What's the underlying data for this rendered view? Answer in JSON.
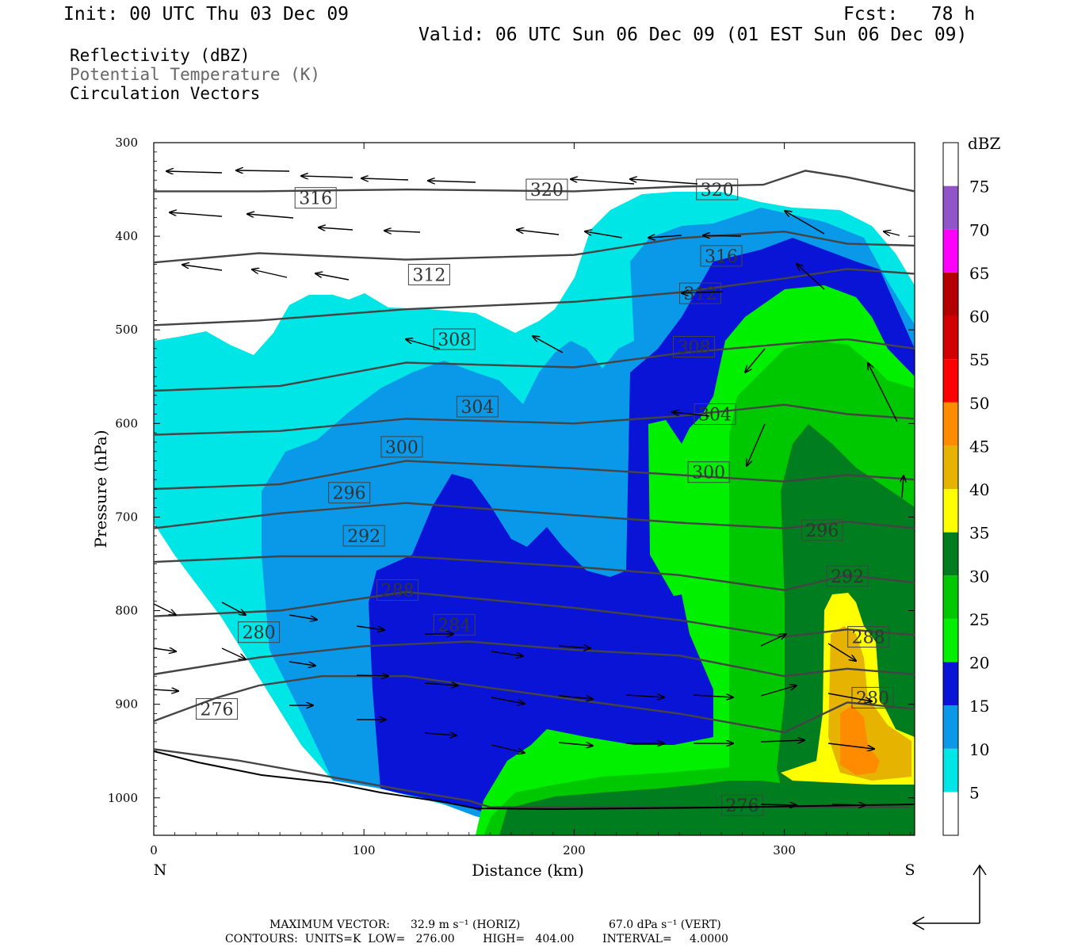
{
  "header": {
    "init": "Init: 00 UTC Thu 03 Dec 09",
    "fcst": "Fcst:   78 h",
    "valid": "Valid: 06 UTC Sun 06 Dec 09 (01 EST Sun 06 Dec 09)"
  },
  "legend_lines": {
    "reflectivity": "Reflectivity (dBZ)",
    "theta": "Potential Temperature (K)",
    "vectors": "Circulation Vectors"
  },
  "footer": {
    "max_vector_label": "MAXIMUM VECTOR:",
    "max_vector_horiz": "32.9 m s⁻¹ (HORIZ)",
    "max_vector_vert": "67.0 dPa s⁻¹ (VERT)",
    "contours": "CONTOURS:  UNITS=K  LOW=   276.00        HIGH=   404.00        INTERVAL=     4.0000"
  },
  "colors": {
    "dbz": [
      "#ffffff",
      "#00e5e5",
      "#0a98e8",
      "#0a14d6",
      "#00f000",
      "#00c800",
      "#007d1f",
      "#ffff00",
      "#e6b400",
      "#ff8c00",
      "#ff0000",
      "#d20000",
      "#b40000",
      "#ff00ff",
      "#9055c8",
      "#ffffff"
    ],
    "contour": "#444444"
  },
  "chart_data": {
    "type": "cross-section",
    "xlabel": "Distance (km)",
    "ylabel": "Pressure (hPa)",
    "xlim": [
      0,
      362
    ],
    "ylim": [
      1040,
      300
    ],
    "x_ticks": [
      0,
      100,
      200,
      300
    ],
    "y_ticks": [
      300,
      400,
      500,
      600,
      700,
      800,
      900,
      1000
    ],
    "x_endpoints": {
      "left": "N",
      "right": "S"
    },
    "colorbar": {
      "title": "dBZ",
      "levels": [
        5,
        10,
        15,
        20,
        25,
        30,
        35,
        40,
        45,
        50,
        55,
        60,
        65,
        70,
        75
      ]
    },
    "theta_contours": [
      {
        "value": 276,
        "points": [
          [
            0,
            948
          ],
          [
            40,
            960
          ],
          [
            90,
            980
          ],
          [
            120,
            992
          ],
          [
            150,
            1003
          ],
          [
            160,
            1010
          ],
          [
            200,
            1010
          ],
          [
            300,
            1010
          ],
          [
            360,
            1010
          ]
        ],
        "labels": [
          [
            30,
            905
          ],
          [
            280,
            1008
          ]
        ]
      },
      {
        "value": 280,
        "points": [
          [
            0,
            918
          ],
          [
            30,
            893
          ],
          [
            50,
            880
          ],
          [
            80,
            870
          ],
          [
            120,
            870
          ],
          [
            200,
            895
          ],
          [
            250,
            910
          ],
          [
            300,
            930
          ],
          [
            330,
            898
          ],
          [
            362,
            905
          ]
        ],
        "labels": [
          [
            50,
            823
          ],
          [
            342,
            893
          ]
        ]
      },
      {
        "value": 284,
        "points": [
          [
            0,
            868
          ],
          [
            50,
            850
          ],
          [
            100,
            838
          ],
          [
            150,
            833
          ],
          [
            200,
            842
          ],
          [
            250,
            848
          ],
          [
            300,
            870
          ],
          [
            330,
            862
          ],
          [
            362,
            868
          ]
        ],
        "labels": [
          [
            143,
            815
          ]
        ]
      },
      {
        "value": 288,
        "points": [
          [
            0,
            806
          ],
          [
            60,
            800
          ],
          [
            120,
            780
          ],
          [
            200,
            797
          ],
          [
            250,
            810
          ],
          [
            300,
            828
          ],
          [
            330,
            820
          ],
          [
            362,
            826
          ]
        ],
        "labels": [
          [
            116,
            778
          ],
          [
            340,
            828
          ]
        ]
      },
      {
        "value": 292,
        "points": [
          [
            0,
            748
          ],
          [
            60,
            742
          ],
          [
            120,
            742
          ],
          [
            200,
            753
          ],
          [
            250,
            762
          ],
          [
            300,
            778
          ],
          [
            330,
            762
          ],
          [
            362,
            770
          ]
        ],
        "labels": [
          [
            100,
            720
          ],
          [
            330,
            763
          ]
        ]
      },
      {
        "value": 296,
        "points": [
          [
            0,
            712
          ],
          [
            60,
            696
          ],
          [
            120,
            685
          ],
          [
            200,
            698
          ],
          [
            250,
            706
          ],
          [
            300,
            712
          ],
          [
            330,
            705
          ],
          [
            362,
            712
          ]
        ],
        "labels": [
          [
            93,
            674
          ],
          [
            318,
            714
          ]
        ]
      },
      {
        "value": 300,
        "points": [
          [
            0,
            670
          ],
          [
            60,
            665
          ],
          [
            120,
            640
          ],
          [
            200,
            648
          ],
          [
            250,
            655
          ],
          [
            300,
            662
          ],
          [
            330,
            655
          ],
          [
            362,
            660
          ]
        ],
        "labels": [
          [
            118,
            625
          ],
          [
            264,
            652
          ]
        ]
      },
      {
        "value": 304,
        "points": [
          [
            0,
            612
          ],
          [
            60,
            608
          ],
          [
            120,
            595
          ],
          [
            200,
            600
          ],
          [
            250,
            592
          ],
          [
            300,
            580
          ],
          [
            330,
            590
          ],
          [
            362,
            595
          ]
        ],
        "labels": [
          [
            154,
            582
          ],
          [
            267,
            590
          ]
        ]
      },
      {
        "value": 308,
        "points": [
          [
            0,
            565
          ],
          [
            60,
            560
          ],
          [
            120,
            535
          ],
          [
            200,
            540
          ],
          [
            250,
            525
          ],
          [
            300,
            515
          ],
          [
            330,
            510
          ],
          [
            362,
            520
          ]
        ],
        "labels": [
          [
            143,
            510
          ],
          [
            257,
            518
          ]
        ]
      },
      {
        "value": 312,
        "points": [
          [
            0,
            495
          ],
          [
            50,
            490
          ],
          [
            120,
            478
          ],
          [
            200,
            470
          ],
          [
            250,
            460
          ],
          [
            300,
            445
          ],
          [
            330,
            435
          ],
          [
            362,
            440
          ]
        ],
        "labels": [
          [
            131,
            441
          ],
          [
            260,
            461
          ]
        ]
      },
      {
        "value": 316,
        "points": [
          [
            0,
            428
          ],
          [
            50,
            418
          ],
          [
            120,
            425
          ],
          [
            200,
            420
          ],
          [
            250,
            402
          ],
          [
            300,
            395
          ],
          [
            330,
            408
          ],
          [
            362,
            410
          ]
        ],
        "labels": [
          [
            77,
            359
          ],
          [
            270,
            421
          ]
        ]
      },
      {
        "value": 320,
        "points": [
          [
            0,
            352
          ],
          [
            50,
            352
          ],
          [
            120,
            350
          ],
          [
            200,
            352
          ],
          [
            250,
            347
          ],
          [
            290,
            345
          ],
          [
            310,
            330
          ],
          [
            330,
            337
          ],
          [
            362,
            352
          ]
        ],
        "labels": [
          [
            187,
            350
          ],
          [
            268,
            350
          ]
        ]
      }
    ]
  }
}
